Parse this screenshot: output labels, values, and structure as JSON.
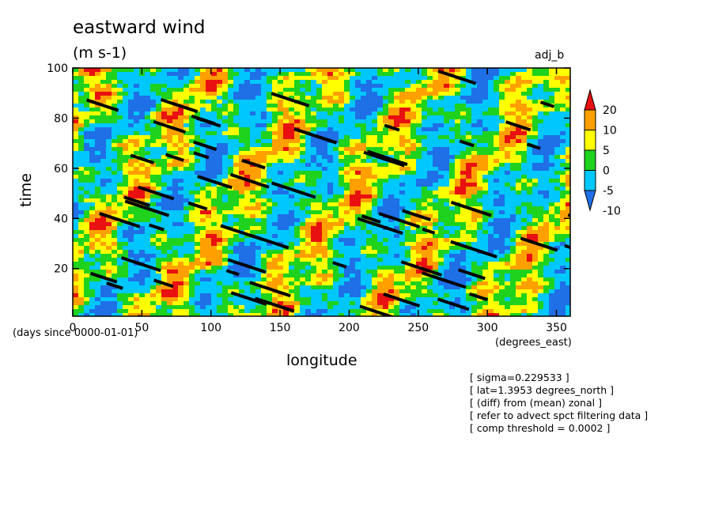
{
  "chart_data": {
    "type": "heatmap",
    "title": "eastward wind",
    "units_label": "(m s-1)",
    "corner_label": "adj_b",
    "xlabel": "longitude",
    "x_sublabel": "(days since 0000-01-01)",
    "x_units": "(degrees_east)",
    "ylabel": "time",
    "xlim": [
      0,
      360
    ],
    "ylim": [
      1,
      100
    ],
    "x_ticks": [
      "0",
      "50",
      "100",
      "150",
      "200",
      "250",
      "300",
      "350"
    ],
    "y_ticks": [
      "20",
      "40",
      "60",
      "80",
      "100"
    ],
    "colorbar": {
      "labels": [
        "-10",
        "-5",
        "0",
        "5",
        "10",
        "20"
      ],
      "colors": [
        "#1f6fe6",
        "#00c8ff",
        "#1ed21e",
        "#ffff00",
        "#ffa000",
        "#e81010"
      ]
    },
    "notes": [
      "[ sigma=0.229533 ]",
      "[ lat=1.3953 degrees_north ]",
      "[ (diff) from (mean) zonal ]",
      "[ refer to advect spct filtering data ]",
      "[ comp threshold = 0.0002 ]"
    ]
  }
}
